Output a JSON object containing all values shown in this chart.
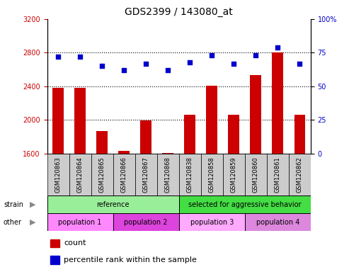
{
  "title": "GDS2399 / 143080_at",
  "samples": [
    "GSM120863",
    "GSM120864",
    "GSM120865",
    "GSM120866",
    "GSM120867",
    "GSM120868",
    "GSM120838",
    "GSM120858",
    "GSM120859",
    "GSM120860",
    "GSM120861",
    "GSM120862"
  ],
  "counts": [
    2380,
    2380,
    1870,
    1635,
    1995,
    1610,
    2060,
    2410,
    2060,
    2530,
    2800,
    2060
  ],
  "percentile": [
    72,
    72,
    65,
    62,
    67,
    62,
    68,
    73,
    67,
    73,
    79,
    67
  ],
  "ylim_left": [
    1600,
    3200
  ],
  "ylim_right": [
    0,
    100
  ],
  "yticks_left": [
    1600,
    2000,
    2400,
    2800,
    3200
  ],
  "yticks_right": [
    0,
    25,
    50,
    75,
    100
  ],
  "bar_color": "#cc0000",
  "dot_color": "#0000cc",
  "bar_width": 0.5,
  "strain_labels": [
    {
      "text": "reference",
      "start": 0,
      "end": 5,
      "color": "#99ee99"
    },
    {
      "text": "selected for aggressive behavior",
      "start": 6,
      "end": 11,
      "color": "#44dd44"
    }
  ],
  "other_labels": [
    {
      "text": "population 1",
      "start": 0,
      "end": 2,
      "color": "#ff88ff"
    },
    {
      "text": "population 2",
      "start": 3,
      "end": 5,
      "color": "#dd44dd"
    },
    {
      "text": "population 3",
      "start": 6,
      "end": 8,
      "color": "#ffaaff"
    },
    {
      "text": "population 4",
      "start": 9,
      "end": 11,
      "color": "#dd88dd"
    }
  ],
  "left_label_color": "#cc0000",
  "right_label_color": "#0000cc",
  "background_color": "#ffffff",
  "cell_bg_color": "#cccccc",
  "grid_dotline_color": "#000000",
  "dotgrid_ticks": [
    2000,
    2400,
    2800
  ],
  "group_split": 5.5,
  "label_fontsize": 7,
  "tick_fontsize": 7,
  "title_fontsize": 10
}
